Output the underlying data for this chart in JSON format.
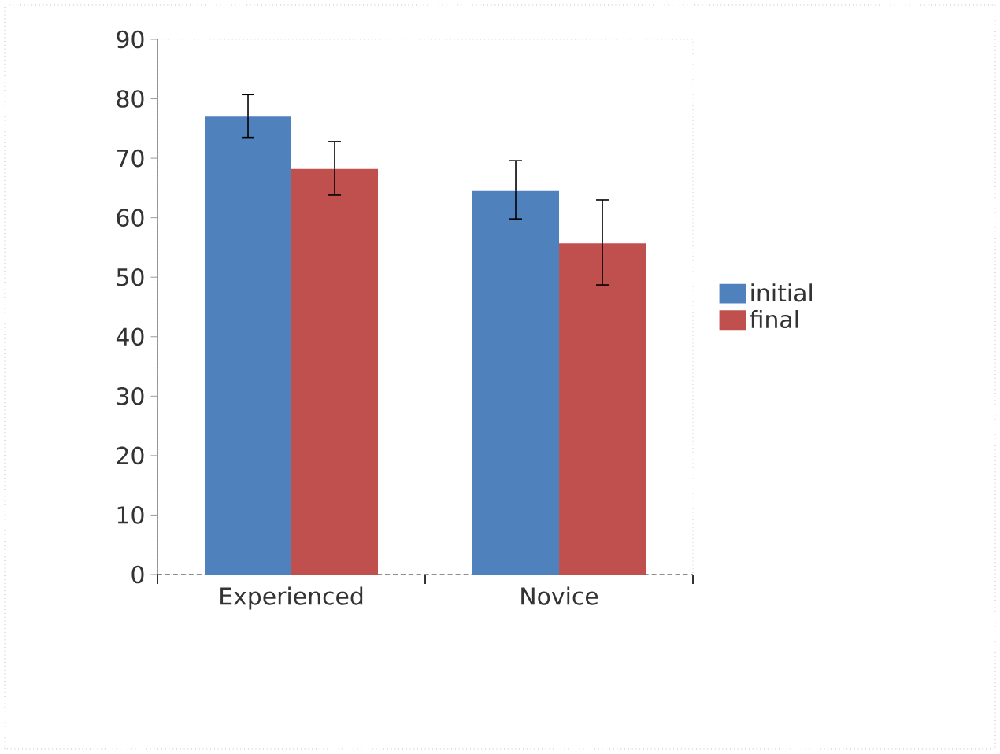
{
  "chart_data": {
    "type": "bar",
    "categories": [
      "Experienced",
      "Novice"
    ],
    "series": [
      {
        "name": "initial",
        "color": "#4f81bd",
        "values": [
          77,
          64.5
        ],
        "errors": [
          [
            73.5,
            80.7
          ],
          [
            59.8,
            69.6
          ]
        ]
      },
      {
        "name": "final",
        "color": "#c0504d",
        "values": [
          68.2,
          55.7
        ],
        "errors": [
          [
            63.8,
            72.8
          ],
          [
            48.7,
            63
          ]
        ]
      }
    ],
    "ylim": [
      0,
      90
    ],
    "yticks": [
      0,
      10,
      20,
      30,
      40,
      50,
      60,
      70,
      80,
      90
    ],
    "legend": "right",
    "grid": false
  }
}
